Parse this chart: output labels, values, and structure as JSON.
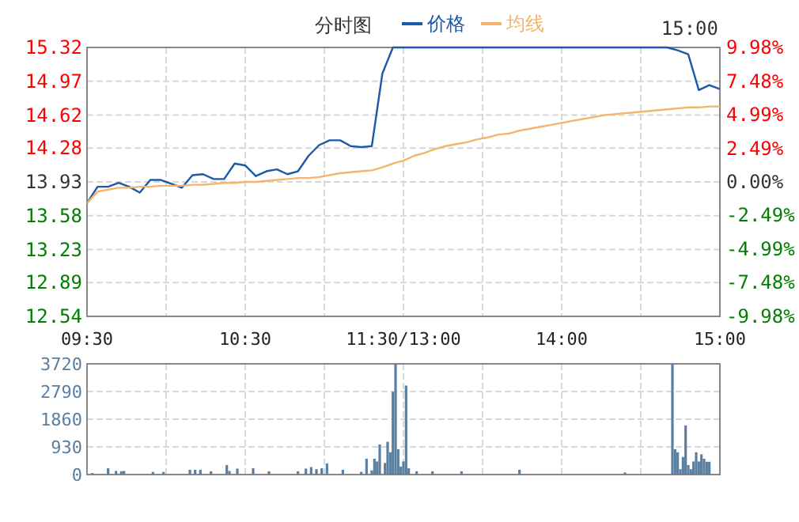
{
  "chart_data": [
    {
      "type": "line",
      "title": "分时图",
      "legend": "top",
      "grid": true,
      "annotations": [
        "15:00"
      ],
      "categories": [
        "09:30",
        null,
        null,
        null,
        null,
        null,
        null,
        null,
        null,
        null,
        null,
        null,
        null,
        null,
        null,
        "10:30",
        null,
        null,
        null,
        null,
        null,
        null,
        null,
        null,
        null,
        null,
        null,
        null,
        null,
        null,
        "11:30/13:00",
        null,
        null,
        null,
        null,
        null,
        null,
        null,
        null,
        null,
        null,
        null,
        null,
        null,
        null,
        "14:00",
        null,
        null,
        null,
        null,
        null,
        null,
        null,
        null,
        null,
        null,
        null,
        null,
        null,
        null,
        "15:00"
      ],
      "ylim": [
        12.54,
        15.32
      ],
      "yticks": [
        12.54,
        12.89,
        13.23,
        13.58,
        13.93,
        14.28,
        14.62,
        14.97,
        15.32
      ],
      "y2lim": [
        -9.98,
        9.98
      ],
      "y2ticks": [
        {
          "value": -9.98,
          "label": "-9.98%"
        },
        {
          "value": -7.48,
          "label": "-7.48%"
        },
        {
          "value": -4.99,
          "label": "-4.99%"
        },
        {
          "value": -2.49,
          "label": "-2.49%"
        },
        {
          "value": 0,
          "label": "0.00%"
        },
        {
          "value": 2.49,
          "label": "2.49%"
        },
        {
          "value": 4.99,
          "label": "4.99%"
        },
        {
          "value": 7.48,
          "label": "7.48%"
        },
        {
          "value": 9.98,
          "label": "9.98%"
        }
      ],
      "series": [
        {
          "name": "价格",
          "color": "#1a5aa8",
          "values": [
            13.71,
            13.88,
            13.88,
            13.92,
            13.88,
            13.82,
            13.95,
            13.95,
            13.91,
            13.87,
            14.0,
            14.01,
            13.96,
            13.96,
            14.12,
            14.1,
            13.99,
            14.04,
            14.06,
            14.01,
            14.04,
            14.2,
            14.31,
            14.36,
            14.36,
            14.3,
            14.29,
            14.3,
            15.05,
            15.32,
            15.32,
            15.32,
            15.32,
            15.32,
            15.32,
            15.32,
            15.32,
            15.32,
            15.32,
            15.32,
            15.32,
            15.32,
            15.32,
            15.32,
            15.32,
            15.32,
            15.32,
            15.32,
            15.32,
            15.32,
            15.32,
            15.32,
            15.32,
            15.32,
            15.32,
            15.32,
            15.29,
            15.25,
            14.88,
            14.93,
            14.89
          ]
        },
        {
          "name": "均线",
          "color": "#f5b36b",
          "values": [
            13.71,
            13.83,
            13.85,
            13.87,
            13.87,
            13.88,
            13.88,
            13.89,
            13.89,
            13.89,
            13.9,
            13.9,
            13.91,
            13.92,
            13.92,
            13.93,
            13.93,
            13.94,
            13.95,
            13.96,
            13.97,
            13.97,
            13.98,
            14.0,
            14.02,
            14.03,
            14.04,
            14.05,
            14.08,
            14.12,
            14.15,
            14.2,
            14.23,
            14.27,
            14.3,
            14.32,
            14.34,
            14.37,
            14.39,
            14.42,
            14.43,
            14.46,
            14.48,
            14.5,
            14.52,
            14.54,
            14.56,
            14.58,
            14.6,
            14.62,
            14.63,
            14.64,
            14.65,
            14.66,
            14.67,
            14.68,
            14.69,
            14.7,
            14.7,
            14.71,
            14.71
          ]
        }
      ]
    },
    {
      "type": "bar",
      "grid": true,
      "tick_labels": "y",
      "categories": [
        null,
        null,
        null,
        null,
        null,
        null,
        null,
        null,
        null,
        null,
        null,
        null,
        null,
        null,
        null,
        null,
        null,
        null,
        null,
        null,
        null,
        null,
        null,
        null,
        null,
        null,
        null,
        null,
        null,
        null,
        null,
        null,
        null,
        null,
        null,
        null,
        null,
        null,
        null,
        null,
        null,
        null,
        null,
        null,
        null,
        null,
        null,
        null,
        null,
        null,
        null,
        null,
        null,
        null,
        null,
        null,
        null,
        null,
        null,
        null,
        null,
        null,
        null,
        null,
        null,
        null,
        null,
        null,
        null,
        null,
        null,
        null,
        null,
        null,
        null,
        null,
        null,
        null,
        null,
        null,
        null,
        null,
        null,
        null,
        null,
        null,
        null,
        null,
        null,
        null,
        null,
        null,
        null,
        null,
        null,
        null,
        null,
        null,
        null,
        null,
        null,
        null,
        null,
        null,
        null,
        null,
        null,
        null,
        null,
        null,
        null,
        null,
        null,
        null,
        null,
        null,
        null,
        null,
        null,
        null,
        null,
        null,
        null,
        null,
        null,
        null,
        null,
        null,
        null,
        null,
        null,
        null,
        null,
        null,
        null,
        null,
        null,
        null,
        null,
        null,
        null,
        null,
        null,
        null,
        null,
        null,
        null,
        null,
        null,
        null,
        null,
        null,
        null,
        null,
        null,
        null,
        null,
        null,
        null,
        null,
        null,
        null,
        null,
        null,
        null,
        null,
        null,
        null,
        null,
        null,
        null,
        null,
        null,
        null,
        null,
        null,
        null,
        null,
        null,
        null,
        null,
        null,
        null,
        null,
        null,
        null,
        null,
        null,
        null,
        null,
        null,
        null,
        null,
        null,
        null,
        null,
        null,
        null,
        null,
        null,
        null,
        null,
        null,
        null,
        null,
        null,
        null,
        null,
        null,
        null,
        null,
        null,
        null,
        null,
        null,
        null,
        null,
        null,
        null,
        null,
        null,
        null,
        null,
        null,
        null,
        null,
        null,
        null,
        null,
        null,
        null,
        null,
        null,
        null,
        null,
        null,
        null,
        null,
        null,
        null,
        null
      ],
      "ylim": [
        0,
        3720
      ],
      "yticks": [
        0,
        930,
        1860,
        2790,
        3720
      ],
      "series": [
        {
          "color": "#5a7fa0",
          "values": [
            null,
            null,
            50,
            null,
            null,
            null,
            null,
            null,
            210,
            null,
            null,
            120,
            null,
            110,
            120,
            null,
            null,
            null,
            null,
            null,
            null,
            null,
            null,
            null,
            null,
            90,
            null,
            null,
            null,
            90,
            null,
            null,
            null,
            null,
            null,
            null,
            null,
            null,
            null,
            160,
            null,
            160,
            null,
            160,
            null,
            null,
            null,
            110,
            null,
            null,
            null,
            null,
            null,
            320,
            120,
            null,
            null,
            200,
            null,
            null,
            null,
            null,
            null,
            210,
            null,
            null,
            null,
            null,
            null,
            110,
            null,
            null,
            null,
            null,
            null,
            null,
            null,
            null,
            null,
            null,
            110,
            null,
            null,
            200,
            null,
            250,
            null,
            180,
            null,
            210,
            null,
            370,
            null,
            null,
            null,
            null,
            null,
            160,
            null,
            null,
            null,
            null,
            null,
            null,
            90,
            null,
            530,
            null,
            140,
            530,
            440,
            1010,
            null,
            390,
            1100,
            750,
            2780,
            3720,
            850,
            270,
            440,
            2990,
            210,
            null,
            null,
            110,
            null,
            null,
            null,
            null,
            null,
            110,
            null,
            null,
            null,
            null,
            null,
            null,
            null,
            null,
            null,
            null,
            110,
            null,
            null,
            null,
            null,
            null,
            null,
            null,
            null,
            null,
            null,
            null,
            null,
            null,
            null,
            null,
            null,
            null,
            null,
            null,
            null,
            null,
            160,
            null,
            null,
            null,
            null,
            null,
            null,
            null,
            null,
            null,
            null,
            null,
            null,
            null,
            null,
            null,
            null,
            null,
            null,
            null,
            null,
            null,
            null,
            null,
            null,
            null,
            null,
            null,
            null,
            null,
            null,
            null,
            null,
            null,
            null,
            null,
            null,
            null,
            null,
            null,
            70,
            null,
            null,
            null,
            null,
            null,
            null,
            null,
            null,
            null,
            null,
            null,
            null,
            null,
            null,
            null,
            null,
            null,
            3720,
            850,
            750,
            180,
            590,
            1650,
            320,
            180,
            440,
            750,
            440,
            680,
            530,
            430,
            430,
            null,
            null,
            null,
            null
          ]
        }
      ]
    }
  ]
}
